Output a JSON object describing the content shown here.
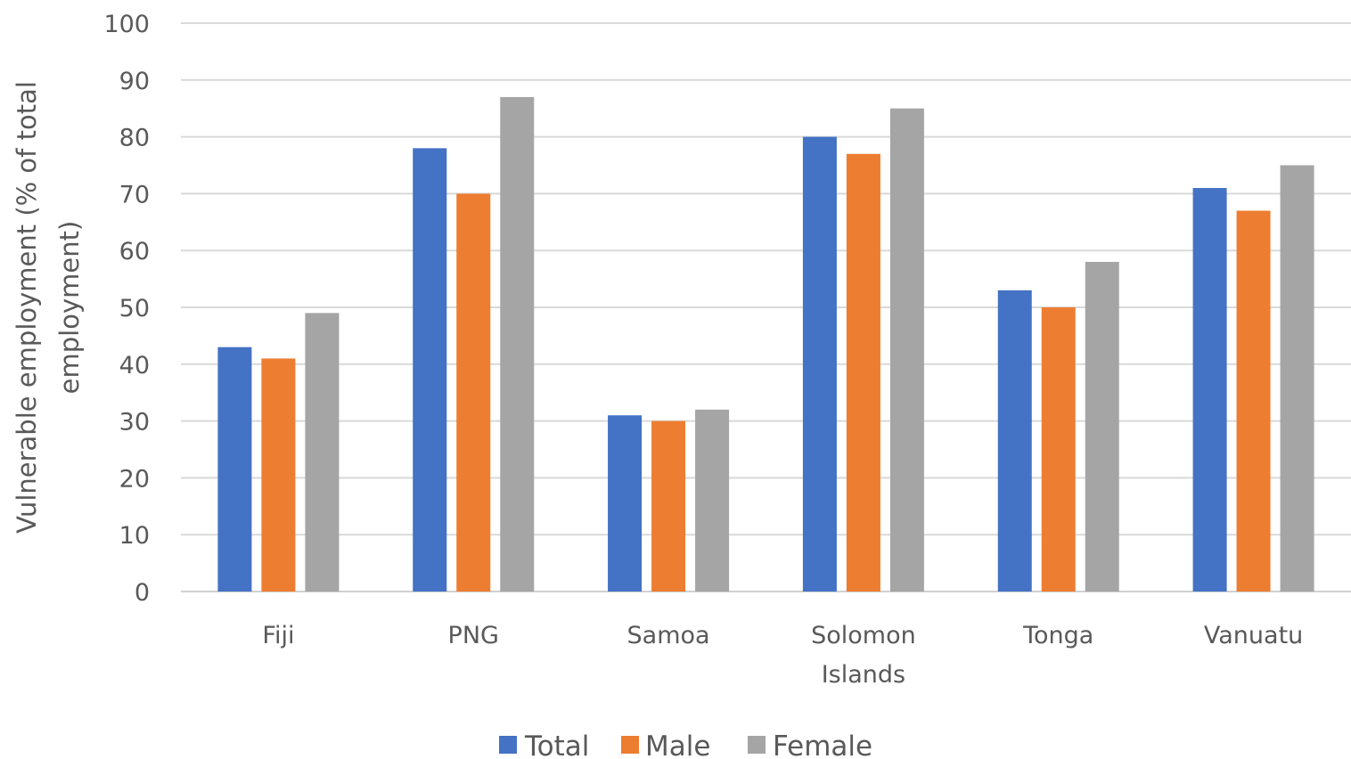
{
  "chart_data": {
    "type": "bar",
    "title": "",
    "ylabel": "Vulnerable employment  (% of total employment)",
    "ylabel_lines": [
      "Vulnerable employment  (% of total",
      "employment)"
    ],
    "xlabel": "",
    "ylim": [
      0,
      100
    ],
    "yticks": [
      0,
      10,
      20,
      30,
      40,
      50,
      60,
      70,
      80,
      90,
      100
    ],
    "ytick_labels": [
      "0",
      "10",
      "20",
      "30",
      "40",
      "50",
      "60",
      "70",
      "80",
      "90",
      "100"
    ],
    "categories": [
      "Fiji",
      "PNG",
      "Samoa",
      "Solomon Islands",
      "Tonga",
      "Vanuatu"
    ],
    "category_lines": [
      [
        "Fiji"
      ],
      [
        "PNG"
      ],
      [
        "Samoa"
      ],
      [
        "Solomon",
        "Islands"
      ],
      [
        "Tonga"
      ],
      [
        "Vanuatu"
      ]
    ],
    "series": [
      {
        "name": "Total",
        "color": "#4472C4",
        "values": [
          43,
          78,
          31,
          80,
          53,
          71
        ]
      },
      {
        "name": "Male",
        "color": "#ED7D31",
        "values": [
          41,
          70,
          30,
          77,
          50,
          67
        ]
      },
      {
        "name": "Female",
        "color": "#A5A5A5",
        "values": [
          49,
          87,
          32,
          85,
          58,
          75
        ]
      }
    ],
    "grid": true,
    "legend": "bottom",
    "gridline_color": "#D9D9D9"
  }
}
